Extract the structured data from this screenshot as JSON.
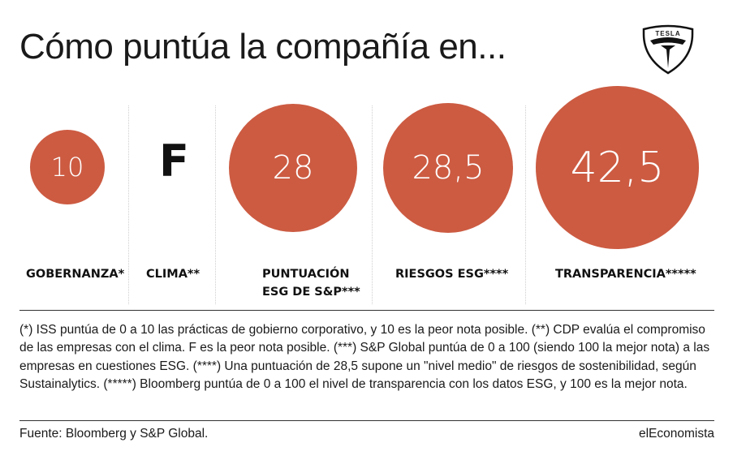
{
  "title": "Cómo puntúa la compañía en...",
  "logo": {
    "text": "TESLA",
    "icon": "tesla-logo-icon"
  },
  "colors": {
    "bubble": "#cc5b42",
    "text": "#1a1a1a"
  },
  "chart_data": {
    "type": "bubble",
    "title": "Cómo puntúa la compañía en...",
    "categories": [
      "GOBERNANZA*",
      "CLIMA**",
      "PUNTUACIÓN ESG DE S&P***",
      "RIESGOS ESG****",
      "TRANSPARENCIA*****"
    ],
    "values": [
      10,
      "F",
      28,
      28.5,
      42.5
    ],
    "value_labels": [
      "10",
      "F",
      "28",
      "28,5",
      "42,5"
    ]
  },
  "labels": {
    "gobernanza": "GOBERNANZA*",
    "clima": "CLIMA**",
    "sp_line1": "PUNTUACIÓN",
    "sp_line2": "ESG DE S&P***",
    "riesgos": "RIESGOS ESG****",
    "transparencia": "TRANSPARENCIA*****"
  },
  "notes": "(*) ISS puntúa de 0 a 10 las prácticas de gobierno corporativo, y 10 es la peor nota posible.  (**) CDP evalúa el compromiso de las empresas con el clima. F es la peor nota posible. (***) S&P Global puntúa de 0 a 100 (siendo 100 la mejor nota) a las empresas en cuestiones ESG.  (****) Una puntuación de 28,5 supone un \"nivel medio\" de riesgos de sostenibilidad, según Sustainalytics.  (*****) Bloomberg puntúa de 0 a 100 el nivel de transparencia con los datos ESG, y 100 es la mejor nota.",
  "source": "Fuente: Bloomberg y S&P Global.",
  "brand": "elEconomista"
}
